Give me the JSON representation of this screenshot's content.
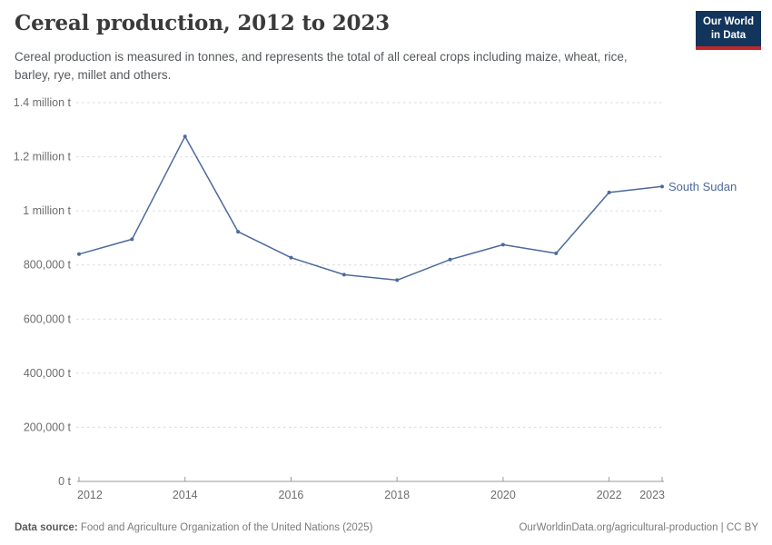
{
  "header": {
    "title": "Cereal production, 2012 to 2023",
    "subtitle": "Cereal production is measured in tonnes, and represents the total of all cereal crops including maize, wheat, rice, barley, rye, millet and others.",
    "logo": {
      "line1": "Our World",
      "line2": "in Data"
    }
  },
  "chart_data": {
    "type": "line",
    "title": "Cereal production, 2012 to 2023",
    "x": [
      2012,
      2013,
      2014,
      2015,
      2016,
      2017,
      2018,
      2019,
      2020,
      2021,
      2022,
      2023
    ],
    "series": [
      {
        "name": "South Sudan",
        "color": "#4C6A9C",
        "values": [
          840000,
          895000,
          1275000,
          923000,
          827000,
          764000,
          744000,
          820000,
          875000,
          843000,
          1068000,
          1090000
        ]
      }
    ],
    "xlabel": "",
    "ylabel": "",
    "ylim": [
      0,
      1400000
    ],
    "y_ticks": [
      {
        "value": 0,
        "label": "0 t"
      },
      {
        "value": 200000,
        "label": "200,000 t"
      },
      {
        "value": 400000,
        "label": "400,000 t"
      },
      {
        "value": 600000,
        "label": "600,000 t"
      },
      {
        "value": 800000,
        "label": "800,000 t"
      },
      {
        "value": 1000000,
        "label": "1 million t"
      },
      {
        "value": 1200000,
        "label": "1.2 million t"
      },
      {
        "value": 1400000,
        "label": "1.4 million t"
      }
    ],
    "x_ticks": [
      2012,
      2014,
      2016,
      2018,
      2020,
      2022,
      2023
    ],
    "grid": "horizontal-dashed",
    "legend_position": "end-of-line-label",
    "unit": "tonnes"
  },
  "colors": {
    "line": "#4C6A9C",
    "grid": "#dadada",
    "axis": "#999999",
    "tick_label": "#6d6d6d",
    "title": "#3a3a3a",
    "subtitle": "#55595c",
    "logo_bg": "#12355c",
    "logo_accent": "#c0272d"
  },
  "footer": {
    "datasource_label": "Data source:",
    "datasource_text": "Food and Agriculture Organization of the United Nations (2025)",
    "attribution": "OurWorldinData.org/agricultural-production | CC BY"
  }
}
